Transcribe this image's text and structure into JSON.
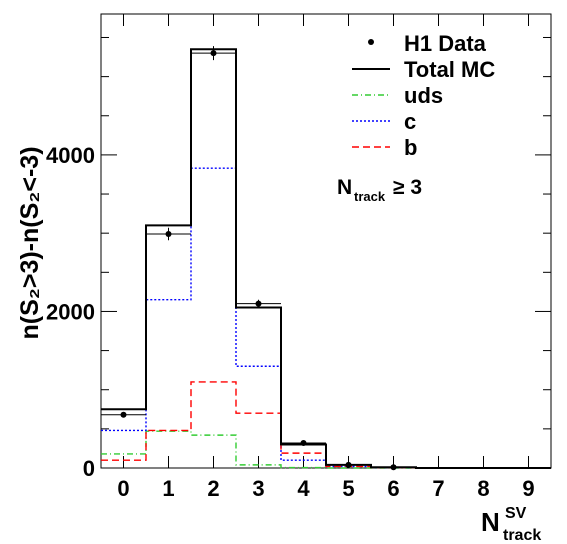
{
  "chart_data": {
    "type": "line",
    "ylabel": "n(S₂>3)-n(S₂<-3)",
    "xlabel": "N_track^SV",
    "xlabel_main": "N",
    "xlabel_sup": "SV",
    "xlabel_sub": "track",
    "xlim": [
      -0.5,
      9.5
    ],
    "ylim": [
      0,
      5800
    ],
    "x_ticks": [
      0,
      1,
      2,
      3,
      4,
      5,
      6,
      7,
      8,
      9
    ],
    "x_tick_labels": [
      "0",
      "1",
      "2",
      "3",
      "4",
      "5",
      "6",
      "7",
      "8",
      "9"
    ],
    "y_ticks": [
      0,
      2000,
      4000
    ],
    "y_tick_labels": [
      "0",
      "2000",
      "4000"
    ],
    "bins": [
      0,
      1,
      2,
      3,
      4,
      5,
      6,
      7,
      8,
      9
    ],
    "data": {
      "name": "H1 Data",
      "values": [
        680,
        2990,
        5300,
        2100,
        320,
        40,
        10,
        0,
        0,
        0
      ],
      "errors": [
        30,
        80,
        90,
        50,
        20,
        8,
        4,
        0,
        0,
        0
      ]
    },
    "series": [
      {
        "name": "Total MC",
        "color": "#000000",
        "style": "solid",
        "values": [
          750,
          3100,
          5350,
          2050,
          300,
          40,
          10,
          0,
          0,
          0
        ]
      },
      {
        "name": "uds",
        "color": "#33cc33",
        "style": "dashdot",
        "values": [
          180,
          470,
          420,
          40,
          5,
          0,
          0,
          0,
          0,
          0
        ]
      },
      {
        "name": "c",
        "color": "#0000ff",
        "style": "dotted",
        "values": [
          480,
          2150,
          3830,
          1300,
          100,
          20,
          5,
          0,
          0,
          0
        ]
      },
      {
        "name": "b",
        "color": "#ff0000",
        "style": "dashed",
        "values": [
          100,
          480,
          1100,
          700,
          190,
          20,
          5,
          0,
          0,
          0
        ]
      }
    ],
    "legend": {
      "entries": [
        "H1 Data",
        "Total MC",
        "uds",
        "c",
        "b"
      ],
      "placement": "top-right"
    },
    "annotation": {
      "main": "N",
      "sub": "track",
      "rest": "≥ 3"
    }
  }
}
